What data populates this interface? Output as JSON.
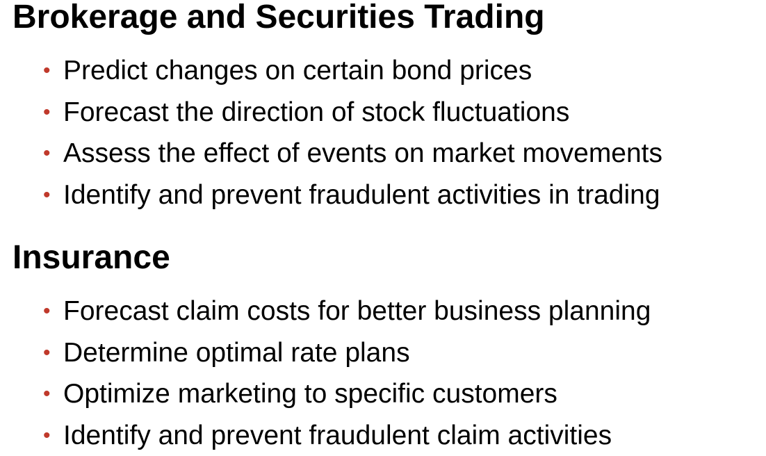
{
  "sections": [
    {
      "title": "Brokerage and Securities Trading",
      "items": [
        "Predict changes on certain bond prices",
        "Forecast the direction of stock fluctuations",
        "Assess the effect of events on market movements",
        "Identify and prevent fraudulent activities in trading"
      ]
    },
    {
      "title": "Insurance",
      "items": [
        "Forecast claim costs for better business planning",
        "Determine optimal rate plans",
        "Optimize marketing to specific customers",
        "Identify and prevent fraudulent claim activities"
      ]
    }
  ],
  "bullet": {
    "glyph": "•",
    "color": "#c0392b"
  }
}
